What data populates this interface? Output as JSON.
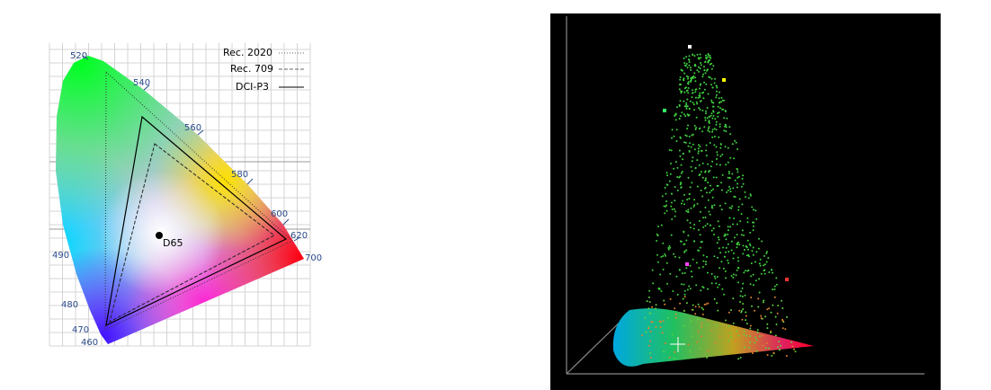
{
  "diagram": {
    "wavelength_labels": [
      "520",
      "540",
      "560",
      "580",
      "600",
      "620",
      "700",
      "490",
      "480",
      "470",
      "460"
    ],
    "legend": [
      "Rec. 2020",
      "Rec. 709",
      "DCI-P3"
    ],
    "white_point": "D65"
  }
}
